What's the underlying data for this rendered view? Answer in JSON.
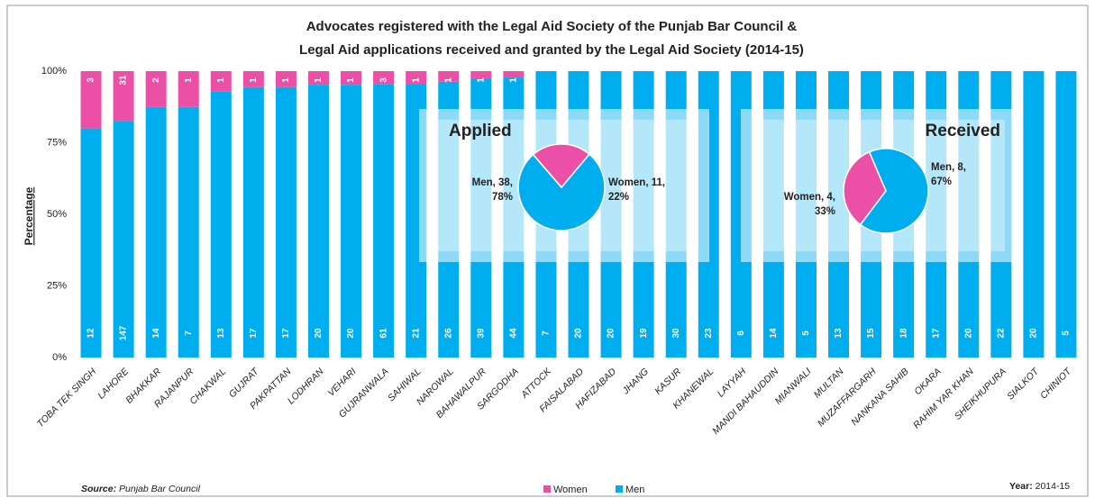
{
  "chart_data": [
    {
      "type": "stacked_bar_percent",
      "title": [
        "Advocates registered with the Legal Aid Society of the Punjab Bar Council &",
        "Legal Aid applications received and granted by the Legal Aid Society (2014-15)"
      ],
      "y_label": "Percentage",
      "categories": [
        "TOBA TEK SINGH",
        "LAHORE",
        "BHAKKAR",
        "RAJANPUR",
        "CHAKWAL",
        "GUJRAT",
        "PAKPATTAN",
        "LODHRAN",
        "VEHARI",
        "GUJRANWALA",
        "SAHIWAL",
        "NAROWAL",
        "BAHAWALPUR",
        "SARGODHA",
        "ATTOCK",
        "FAISALABAD",
        "HAFIZABAD",
        "JHANG",
        "KASUR",
        "KHANEWAL",
        "LAYYAH",
        "MANDI BAHAUDDIN",
        "MIANWALI",
        "MULTAN",
        "MUZAFFARGARH",
        "NANKANA SAHIB",
        "OKARA",
        "RAHIM YAR KHAN",
        "SHEIKHUPURA",
        "SIALKOT",
        "CHINIOT"
      ],
      "series": [
        {
          "name": "Men",
          "color": "#00aeef",
          "values": [
            12,
            147,
            14,
            7,
            13,
            17,
            17,
            20,
            20,
            61,
            21,
            26,
            39,
            44,
            7,
            20,
            20,
            19,
            30,
            23,
            6,
            14,
            5,
            13,
            15,
            18,
            17,
            20,
            22,
            20,
            5
          ]
        },
        {
          "name": "Women",
          "color": "#ec4fa6",
          "values": [
            3,
            31,
            2,
            1,
            1,
            1,
            1,
            1,
            1,
            3,
            1,
            1,
            1,
            1,
            0,
            0,
            0,
            0,
            0,
            0,
            0,
            0,
            0,
            0,
            0,
            0,
            0,
            0,
            0,
            0,
            0
          ]
        }
      ],
      "legend_order": [
        "Women",
        "Men"
      ],
      "ylim": [
        0,
        100
      ],
      "yticks": [
        {
          "value": 0,
          "label": "0%"
        },
        {
          "value": 25,
          "label": "25%"
        },
        {
          "value": 50,
          "label": "50%"
        },
        {
          "value": 75,
          "label": "75%"
        },
        {
          "value": 100,
          "label": "100%"
        }
      ],
      "source_label": "Source:",
      "source": "Punjab Bar Council",
      "year_label": "Year:",
      "year": "2014-15"
    },
    {
      "type": "pie",
      "title": "Applied",
      "categories": [
        "Men",
        "Women"
      ],
      "values": [
        38,
        11
      ],
      "colors": [
        "#00aeef",
        "#ec4fa6"
      ],
      "value_labels": [
        "Men, 38, 78%",
        "Women, 11, 22%"
      ]
    },
    {
      "type": "pie",
      "title": "Received",
      "categories": [
        "Women",
        "Men"
      ],
      "values": [
        4,
        8
      ],
      "colors": [
        "#ec4fa6",
        "#00aeef"
      ],
      "value_labels": [
        "Women, 4, 33%",
        "Men, 8, 67%"
      ]
    }
  ]
}
